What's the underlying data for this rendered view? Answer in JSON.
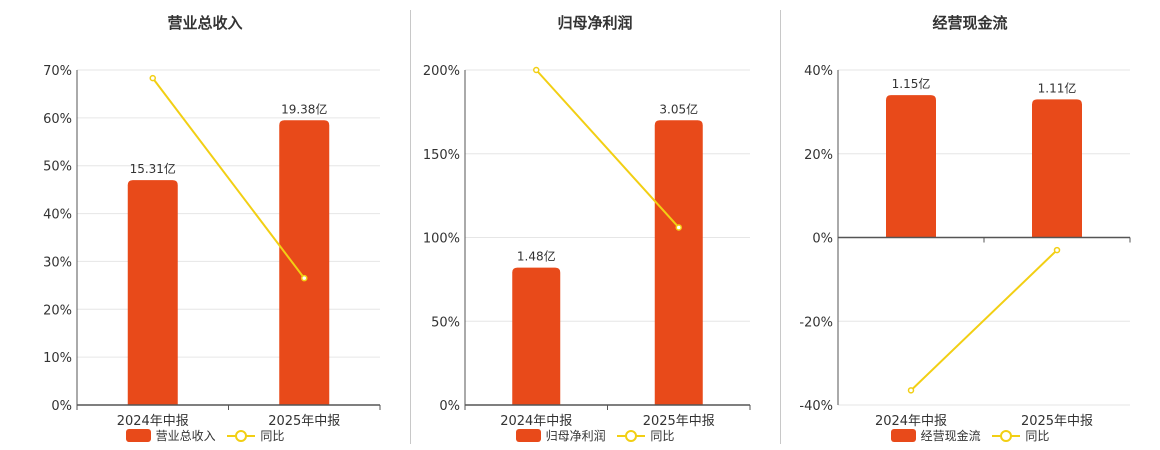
{
  "colors": {
    "bar": "#e84a1a",
    "line": "#f2cf14",
    "axis": "#555555",
    "grid": "#e6e6e6"
  },
  "chart_data": [
    {
      "type": "bar",
      "title": "营业总收入",
      "categories": [
        "2024年中报",
        "2025年中报"
      ],
      "bar_labels": [
        "15.31亿",
        "19.38亿"
      ],
      "bar_values": [
        15.31,
        19.38
      ],
      "bar_heights_pct": [
        47,
        59.5
      ],
      "yoy_pct": [
        68.3,
        26.5
      ],
      "ylim": [
        0,
        70
      ],
      "yticks": [
        0,
        10,
        20,
        30,
        40,
        50,
        60,
        70
      ],
      "ytick_labels": [
        "0%",
        "10%",
        "20%",
        "30%",
        "40%",
        "50%",
        "60%",
        "70%"
      ],
      "legend": [
        "营业总收入",
        "同比"
      ]
    },
    {
      "type": "bar",
      "title": "归母净利润",
      "categories": [
        "2024年中报",
        "2025年中报"
      ],
      "bar_labels": [
        "1.48亿",
        "3.05亿"
      ],
      "bar_values": [
        1.48,
        3.05
      ],
      "bar_heights_pct": [
        82,
        170
      ],
      "yoy_pct": [
        200,
        106
      ],
      "ylim": [
        0,
        200
      ],
      "yticks": [
        0,
        50,
        100,
        150,
        200
      ],
      "ytick_labels": [
        "0%",
        "50%",
        "100%",
        "150%",
        "200%"
      ],
      "legend": [
        "归母净利润",
        "同比"
      ]
    },
    {
      "type": "bar",
      "title": "经营现金流",
      "categories": [
        "2024年中报",
        "2025年中报"
      ],
      "bar_labels": [
        "1.15亿",
        "1.11亿"
      ],
      "bar_values": [
        1.15,
        1.11
      ],
      "bar_heights_pct": [
        34,
        33
      ],
      "yoy_pct": [
        -36.5,
        -3
      ],
      "ylim": [
        -40,
        40
      ],
      "yticks": [
        -40,
        -20,
        0,
        20,
        40
      ],
      "ytick_labels": [
        "-40%",
        "-20%",
        "0%",
        "20%",
        "40%"
      ],
      "legend": [
        "经营现金流",
        "同比"
      ]
    }
  ]
}
